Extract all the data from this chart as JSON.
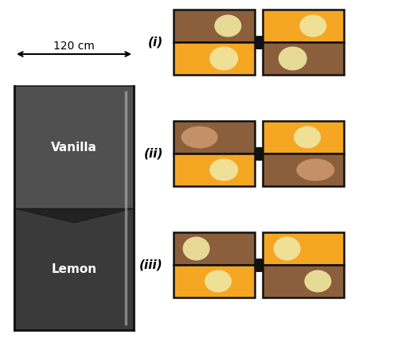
{
  "fig_width": 5.0,
  "fig_height": 4.4,
  "dpi": 100,
  "bg_color": "#ffffff",
  "dark_brown": "#8B5E3C",
  "light_orange": "#F5A623",
  "cream": "#F0E6A0",
  "tan_ellipse": "#C8956B",
  "box_edge": "#111111",
  "row_labels": [
    "(i)",
    "(ii)",
    "(iii)"
  ],
  "dim_label": "120 cm",
  "box_3d_colors": {
    "back": "#2a2a2a",
    "left": "#383838",
    "right": "#484848",
    "top": "#3c3c3c",
    "vanilla": "#505050",
    "lemon": "#3a3a3a",
    "white_accent": "#cccccc"
  }
}
